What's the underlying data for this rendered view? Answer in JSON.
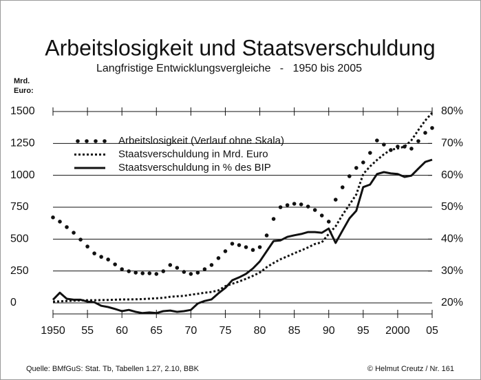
{
  "chart_data": {
    "type": "line",
    "title": "Arbeitslosigkeit und Staatsverschuldung",
    "subtitle": "Langfristige Entwicklungsvergleiche   -   1950 bis 2005",
    "ylabel": [
      "Mrd.",
      "Euro:"
    ],
    "source": "Quelle: BMfGuS:  Stat. Tb, Tabellen  1.27,  2.10, BBK",
    "credit": "© Helmut Creutz / Nr. 161",
    "legend": "upper left",
    "grid": true,
    "xlim": [
      1950,
      2005
    ],
    "xticks": [
      1950,
      {
        "value": 1955,
        "label": "55"
      },
      {
        "value": 1960,
        "label": "60"
      },
      {
        "value": 1965,
        "label": "65"
      },
      {
        "value": 1970,
        "label": "70"
      },
      {
        "value": 1975,
        "label": "75"
      },
      {
        "value": 1980,
        "label": "80"
      },
      {
        "value": 1985,
        "label": "85"
      },
      {
        "value": 1990,
        "label": "90"
      },
      {
        "value": 1995,
        "label": "95"
      },
      2000,
      {
        "value": 2005,
        "label": "05"
      }
    ],
    "ylim": [
      0,
      1500
    ],
    "yticks": [
      0,
      250,
      500,
      750,
      1000,
      1250,
      1500
    ],
    "y2lim": [
      20,
      80
    ],
    "y2ticks": [
      {
        "value": 20,
        "label": "20%"
      },
      {
        "value": 30,
        "label": "30%"
      },
      {
        "value": 40,
        "label": "40%"
      },
      {
        "value": 50,
        "label": "50%"
      },
      {
        "value": 60,
        "label": "60%"
      },
      {
        "value": 70,
        "label": "70%"
      },
      {
        "value": 80,
        "label": "80%"
      }
    ],
    "x": [
      1950,
      1951,
      1952,
      1953,
      1954,
      1955,
      1956,
      1957,
      1958,
      1959,
      1960,
      1961,
      1962,
      1963,
      1964,
      1965,
      1966,
      1967,
      1968,
      1969,
      1970,
      1971,
      1972,
      1973,
      1974,
      1975,
      1976,
      1977,
      1978,
      1979,
      1980,
      1981,
      1982,
      1983,
      1984,
      1985,
      1986,
      1987,
      1988,
      1989,
      1990,
      1991,
      1992,
      1993,
      1994,
      1995,
      1996,
      1997,
      1998,
      1999,
      2000,
      2001,
      2002,
      2003,
      2004,
      2005
    ],
    "series": [
      {
        "name": "Arbeitslosigkeit (Verlauf ohne Skala)",
        "color": "#111111",
        "style": "dots",
        "axis": "y",
        "values": [
          670,
          637,
          594,
          550,
          496,
          442,
          388,
          361,
          340,
          302,
          264,
          248,
          237,
          232,
          232,
          227,
          248,
          297,
          275,
          243,
          227,
          237,
          264,
          297,
          351,
          405,
          464,
          453,
          437,
          415,
          437,
          529,
          658,
          750,
          766,
          777,
          772,
          755,
          728,
          685,
          637,
          809,
          906,
          993,
          1058,
          1101,
          1176,
          1273,
          1241,
          1198,
          1225,
          1225,
          1209,
          1268,
          1333,
          1371
        ]
      },
      {
        "name": "Staatsverschuldung in Mrd. Euro",
        "color": "#111111",
        "style": "dotted",
        "axis": "y",
        "values": [
          10,
          12,
          15,
          18,
          20,
          21,
          21,
          22,
          23,
          25,
          27,
          27,
          28,
          30,
          33,
          36,
          40,
          48,
          52,
          55,
          64,
          71,
          80,
          86,
          98,
          131,
          150,
          168,
          189,
          212,
          238,
          280,
          313,
          342,
          365,
          389,
          411,
          435,
          462,
          475,
          540,
          600,
          690,
          770,
          850,
          1010,
          1070,
          1120,
          1165,
          1200,
          1210,
          1225,
          1275,
          1355,
          1430,
          1490
        ]
      },
      {
        "name": "Staatsverschuldung in % des BIP",
        "color": "#111111",
        "style": "solid",
        "axis": "y2",
        "values": [
          21,
          23.2,
          21.3,
          21,
          21,
          20.4,
          20.2,
          19.1,
          18.7,
          18.1,
          17.4,
          17.8,
          17.2,
          16.8,
          17,
          16.8,
          17.4,
          17.6,
          17.2,
          17.4,
          17.8,
          19.8,
          20.6,
          21.1,
          23,
          24.7,
          27.1,
          28,
          29.1,
          30.8,
          33,
          36.2,
          39.4,
          39.6,
          40.7,
          41.2,
          41.6,
          42.2,
          42.2,
          42,
          43.3,
          38.8,
          42.7,
          46.5,
          48.9,
          56.3,
          57.1,
          60.4,
          61,
          60.6,
          60.4,
          59.5,
          59.9,
          62.1,
          64.2,
          64.9
        ]
      }
    ]
  }
}
